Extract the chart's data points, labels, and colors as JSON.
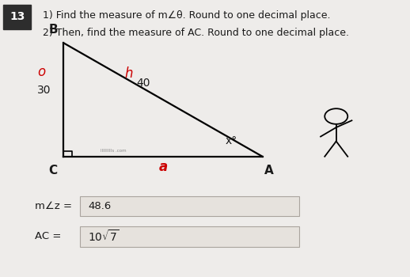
{
  "bg_color": "#eeecea",
  "number_label": "13",
  "number_bg": "#2d2d2d",
  "line1": "1) Find the measure of m∠θ. Round to one decimal place.",
  "line2": "2) Then, find the measure of AC. Round to one decimal place.",
  "tri_C": [
    0.155,
    0.435
  ],
  "tri_B": [
    0.155,
    0.845
  ],
  "tri_A": [
    0.64,
    0.435
  ],
  "label_B": "B",
  "label_C": "C",
  "label_A": "A",
  "label_o": "o",
  "label_30": "30",
  "label_h": "h",
  "label_40": "40",
  "label_x": "x°",
  "label_a": "a",
  "answer1_prefix": "m∠z =",
  "answer1_value": "48.6",
  "answer2_prefix": "AC =",
  "text_color": "#1a1a1a",
  "red_color": "#cc0000",
  "box_facecolor": "#e6e2dd",
  "box_edgecolor": "#aaa49e",
  "watermark_color": "#888888"
}
